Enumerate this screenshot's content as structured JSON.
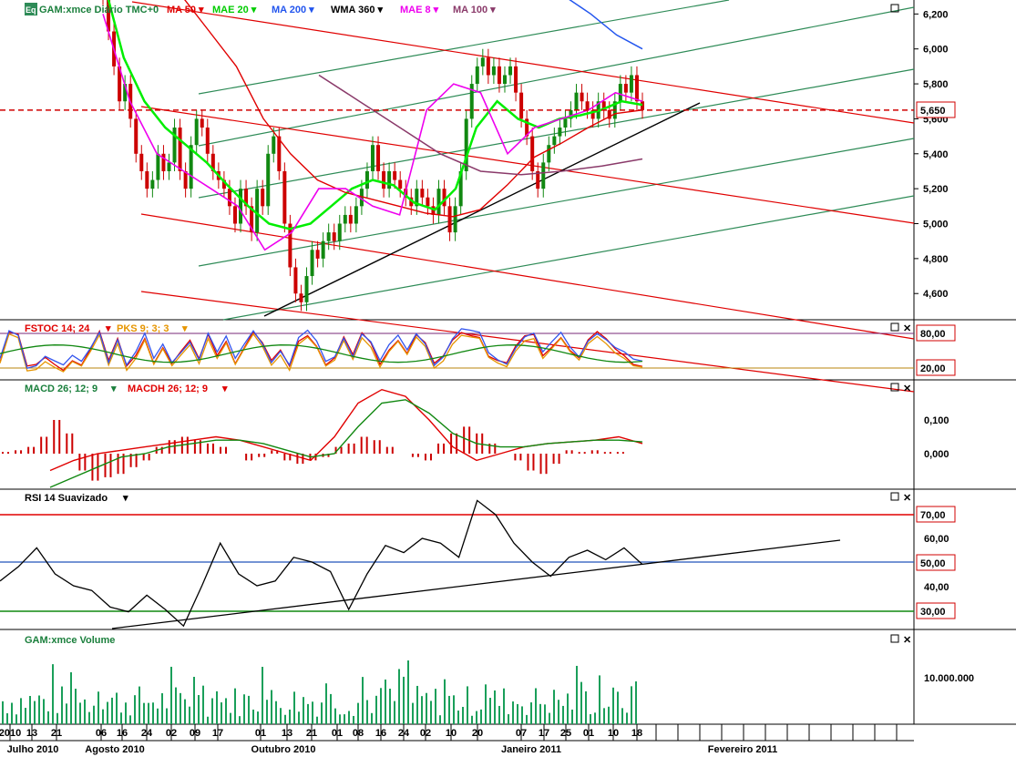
{
  "header": {
    "logo": "Eq",
    "items": [
      {
        "label": "GAM:xmce Diário TMC+0",
        "color": "#1a7f3c"
      },
      {
        "label": "MA 50",
        "color": "#e00000"
      },
      {
        "label": "MAE 20",
        "color": "#00cc00"
      },
      {
        "label": "MA 200",
        "color": "#2255ee"
      },
      {
        "label": "WMA 360",
        "color": "#000000"
      },
      {
        "label": "MAE 8",
        "color": "#ee00ee"
      },
      {
        "label": "MA 100",
        "color": "#8a3a6a"
      }
    ]
  },
  "panels": {
    "price": {
      "ticks": [
        "6,200",
        "6,000",
        "5,800",
        "5,600",
        "5,400",
        "5,200",
        "5,000",
        "4,800",
        "4,600"
      ],
      "current_label": "5,650",
      "current_value": 5.65,
      "range": [
        4.45,
        6.28
      ]
    },
    "fstoc": {
      "label1": "FSTOC 14; 24",
      "label2": "PKS 9; 3; 3",
      "levels": [
        "80,00",
        "20,00"
      ]
    },
    "macd": {
      "label1": "MACD 26; 12; 9",
      "label2": "MACDH 26; 12; 9",
      "ticks": [
        "0,100",
        "0,000"
      ]
    },
    "rsi": {
      "label": "RSI 14 Suavizado",
      "ticks": [
        "60,00",
        "40,00"
      ],
      "levels": [
        "70,00",
        "50,00",
        "30,00"
      ]
    },
    "volume": {
      "label": "GAM:xmce Volume",
      "tick": "10.000.000"
    }
  },
  "x_axis": {
    "days": [
      "2010",
      "13",
      "21",
      "06",
      "16",
      "24",
      "02",
      "09",
      "17",
      "01",
      "13",
      "21",
      "01",
      "08",
      "16",
      "24",
      "02",
      "10",
      "20",
      "07",
      "17",
      "25",
      "01",
      "10",
      "18"
    ],
    "months": [
      "Julho 2010",
      "Agosto 2010",
      "Outubro 2010",
      "Janeiro 2011",
      "Fevereiro 2011"
    ]
  },
  "chart_data": {
    "type": "line",
    "title": "GAM:xmce Diário TMC+0",
    "ylim": [
      4.45,
      6.28
    ],
    "series": [
      {
        "name": "MAE 20",
        "values": [
          6.4,
          5.95,
          5.7,
          5.55,
          5.45,
          5.35,
          5.22,
          5.1,
          5.0,
          4.97,
          5.0,
          5.1,
          5.2,
          5.25,
          5.22,
          5.12,
          5.08,
          5.2,
          5.55,
          5.7,
          5.6,
          5.55,
          5.6,
          5.62,
          5.65,
          5.7,
          5.68
        ]
      },
      {
        "name": "MA 50",
        "values": [
          6.3,
          6.1,
          5.9,
          5.6,
          5.4,
          5.25,
          5.18,
          5.14,
          5.1,
          5.06,
          5.04,
          5.08,
          5.22,
          5.38,
          5.46,
          5.55,
          5.63,
          5.65
        ]
      },
      {
        "name": "MAE 8",
        "values": [
          6.2,
          5.7,
          5.4,
          5.3,
          5.2,
          5.1,
          4.85,
          4.95,
          5.2,
          5.2,
          5.1,
          5.05,
          5.65,
          5.8,
          5.75,
          5.4,
          5.55,
          5.6,
          5.65,
          5.75,
          5.7
        ]
      },
      {
        "name": "MA 100",
        "values": [
          5.85,
          5.7,
          5.55,
          5.4,
          5.3,
          5.28,
          5.3,
          5.33,
          5.37
        ]
      },
      {
        "name": "MA 200",
        "values": [
          6.3,
          6.2,
          6.08,
          6.0
        ]
      }
    ],
    "rsi": [
      42,
      48,
      56,
      45,
      40,
      38,
      31,
      29,
      36,
      30,
      23,
      40,
      58,
      45,
      40,
      42,
      52,
      50,
      46,
      30,
      45,
      57,
      54,
      60,
      58,
      52,
      76,
      70,
      58,
      50,
      44,
      52,
      55,
      51,
      56,
      49
    ]
  }
}
